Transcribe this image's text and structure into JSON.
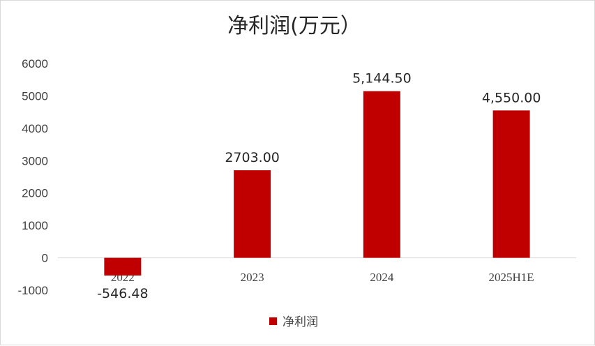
{
  "chart_data": {
    "type": "bar",
    "title": "净利润(万元）",
    "categories": [
      "2022",
      "2023",
      "2024",
      "2025H1E"
    ],
    "series": [
      {
        "name": "净利润",
        "values": [
          -546.48,
          2703.0,
          5144.5,
          4550.0
        ],
        "labels": [
          "-546.48",
          "2703.00",
          "5,144.50",
          "4,550.00"
        ],
        "color": "#c00000"
      }
    ],
    "ylim": [
      -1000,
      6000
    ],
    "yticks": [
      -1000,
      0,
      1000,
      2000,
      3000,
      4000,
      5000,
      6000
    ],
    "grid": false,
    "legend": "bottom"
  }
}
